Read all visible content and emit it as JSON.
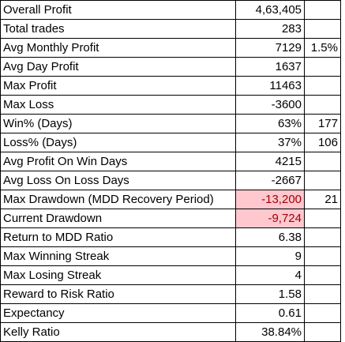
{
  "sheet": {
    "rows": [
      {
        "label": "Overall Profit",
        "value": "4,63,405",
        "extra": ""
      },
      {
        "label": "Total trades",
        "value": "283",
        "extra": ""
      },
      {
        "label": "Avg Monthly Profit",
        "value": "7129",
        "extra": "1.5%"
      },
      {
        "label": "Avg Day Profit",
        "value": "1637",
        "extra": ""
      },
      {
        "label": "Max Profit",
        "value": "11463",
        "extra": ""
      },
      {
        "label": "Max Loss",
        "value": "-3600",
        "extra": ""
      },
      {
        "label": "Win% (Days)",
        "value": "63%",
        "extra": "177"
      },
      {
        "label": "Loss% (Days)",
        "value": "37%",
        "extra": "106"
      },
      {
        "label": "Avg Profit On Win Days",
        "value": "4215",
        "extra": ""
      },
      {
        "label": "Avg Loss On Loss Days",
        "value": "-2667",
        "extra": ""
      },
      {
        "label": "Max Drawdown (MDD Recovery Period)",
        "value": "-13,200",
        "extra": "21",
        "highlight": "#ffc7ce"
      },
      {
        "label": "Current Drawdown",
        "value": "-9,724",
        "extra": "",
        "highlight": "#ffc7ce"
      },
      {
        "label": "Return to MDD Ratio",
        "value": "6.38",
        "extra": ""
      },
      {
        "label": "Max Winning Streak",
        "value": "9",
        "extra": ""
      },
      {
        "label": "Max Losing Streak",
        "value": "4",
        "extra": ""
      },
      {
        "label": "Reward to Risk Ratio",
        "value": "1.58",
        "extra": ""
      },
      {
        "label": "Expectancy",
        "value": "0.61",
        "extra": ""
      },
      {
        "label": "Kelly Ratio",
        "value": "38.84%",
        "extra": ""
      }
    ]
  }
}
